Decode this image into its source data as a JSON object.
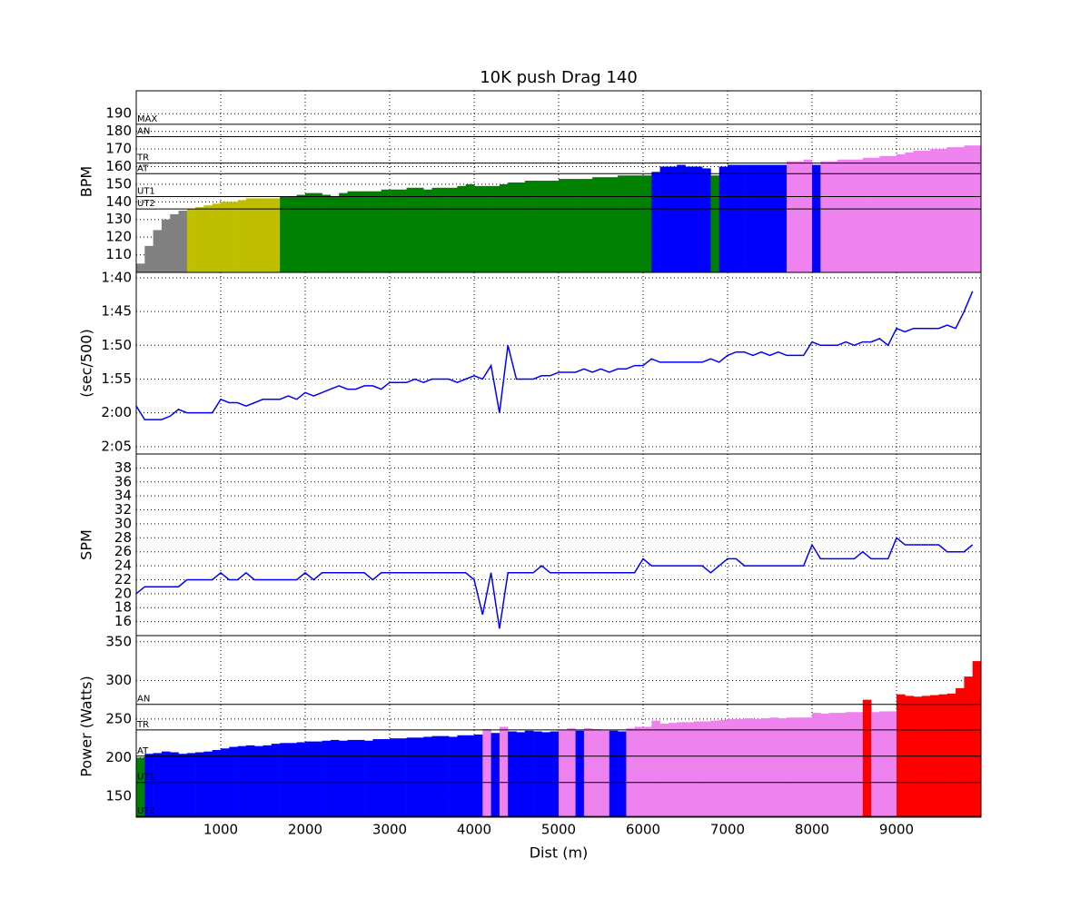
{
  "chart_data": [
    {
      "type": "bar",
      "title": "10K push Drag 140",
      "ylabel": "BPM",
      "x": [
        0,
        100,
        200,
        300,
        400,
        500,
        600,
        700,
        800,
        900,
        1000,
        1100,
        1200,
        1300,
        1400,
        1500,
        1600,
        1700,
        1800,
        1900,
        2000,
        2100,
        2200,
        2300,
        2400,
        2500,
        2600,
        2700,
        2800,
        2900,
        3000,
        3100,
        3200,
        3300,
        3400,
        3500,
        3600,
        3700,
        3800,
        3900,
        4000,
        4100,
        4200,
        4300,
        4400,
        4500,
        4600,
        4700,
        4800,
        4900,
        5000,
        5100,
        5200,
        5300,
        5400,
        5500,
        5600,
        5700,
        5800,
        5900,
        6000,
        6100,
        6200,
        6300,
        6400,
        6500,
        6600,
        6700,
        6800,
        6900,
        7000,
        7100,
        7200,
        7300,
        7400,
        7500,
        7600,
        7700,
        7800,
        7900,
        8000,
        8100,
        8200,
        8300,
        8400,
        8500,
        8600,
        8700,
        8800,
        8900,
        9000,
        9100,
        9200,
        9300,
        9400,
        9500,
        9600,
        9700,
        9800,
        9900
      ],
      "values": [
        105,
        115,
        124,
        130,
        133,
        135,
        136,
        137,
        138,
        139,
        140,
        140,
        141,
        142,
        142,
        142,
        142,
        143,
        143,
        144,
        145,
        145,
        144,
        143,
        145,
        146,
        146,
        146,
        146,
        147,
        147,
        147,
        148,
        148,
        147,
        148,
        148,
        148,
        149,
        150,
        149,
        149,
        149,
        150,
        151,
        151,
        152,
        152,
        152,
        152,
        153,
        153,
        153,
        153,
        154,
        154,
        154,
        155,
        155,
        155,
        155,
        157,
        160,
        160,
        161,
        160,
        160,
        159,
        155,
        160,
        161,
        161,
        161,
        161,
        161,
        161,
        161,
        163,
        163,
        164,
        161,
        163,
        163,
        164,
        164,
        164,
        165,
        165,
        166,
        166,
        167,
        168,
        169,
        169,
        170,
        170,
        171,
        171,
        172,
        172
      ],
      "zones": [
        {
          "name": "UT2",
          "value": 136
        },
        {
          "name": "UT1",
          "value": 143
        },
        {
          "name": "AT",
          "value": 156
        },
        {
          "name": "TR",
          "value": 162
        },
        {
          "name": "AN",
          "value": 177
        },
        {
          "name": "MAX",
          "value": 184
        }
      ],
      "zone_colors": [
        "#808080",
        "#bfbf00",
        "#008000",
        "#0000ff",
        "#ee82ee",
        "#ff0000"
      ],
      "xlim": [
        0,
        10000
      ],
      "xticks": [
        1000,
        2000,
        3000,
        4000,
        5000,
        6000,
        7000,
        8000,
        9000
      ],
      "ylim": [
        100,
        203
      ],
      "yticks": [
        110,
        120,
        130,
        140,
        150,
        160,
        170,
        180,
        190
      ],
      "grid": true
    },
    {
      "type": "line",
      "ylabel": "(sec/500)",
      "color": "#0000ff",
      "x": [
        0,
        100,
        200,
        300,
        400,
        500,
        600,
        700,
        800,
        900,
        1000,
        1100,
        1200,
        1300,
        1400,
        1500,
        1600,
        1700,
        1800,
        1900,
        2000,
        2100,
        2200,
        2300,
        2400,
        2500,
        2600,
        2700,
        2800,
        2900,
        3000,
        3100,
        3200,
        3300,
        3400,
        3500,
        3600,
        3700,
        3800,
        3900,
        4000,
        4100,
        4200,
        4300,
        4400,
        4500,
        4600,
        4700,
        4800,
        4900,
        5000,
        5100,
        5200,
        5300,
        5400,
        5500,
        5600,
        5700,
        5800,
        5900,
        6000,
        6100,
        6200,
        6300,
        6400,
        6500,
        6600,
        6700,
        6800,
        6900,
        7000,
        7100,
        7200,
        7300,
        7400,
        7500,
        7600,
        7700,
        7800,
        7900,
        8000,
        8100,
        8200,
        8300,
        8400,
        8500,
        8600,
        8700,
        8800,
        8900,
        9000,
        9100,
        9200,
        9300,
        9400,
        9500,
        9600,
        9700,
        9800,
        9900
      ],
      "values": [
        119,
        121,
        121,
        121,
        120.5,
        119.5,
        120,
        120,
        120,
        120,
        118,
        118.5,
        118.5,
        119,
        118.5,
        118,
        118,
        118,
        117.5,
        118,
        117,
        117.5,
        117,
        116.5,
        116,
        116.5,
        116.5,
        116,
        116,
        116.5,
        115.5,
        115.5,
        115.5,
        115,
        115.5,
        115,
        115,
        115,
        115.5,
        115,
        114.5,
        115,
        113,
        120,
        110,
        115,
        115,
        115,
        114.5,
        114.5,
        114,
        114,
        114,
        113.5,
        114,
        113.5,
        114,
        113.5,
        113.5,
        113,
        113,
        112,
        112.5,
        112.5,
        112.5,
        112.5,
        112.5,
        112.5,
        112,
        112.5,
        111.5,
        111,
        111,
        111.5,
        111,
        111.5,
        111,
        111.5,
        111.5,
        111.5,
        109.5,
        110,
        110,
        110,
        109.5,
        110,
        109.5,
        109.5,
        109,
        110,
        107.5,
        108,
        107.5,
        107.5,
        107.5,
        107.5,
        107,
        107.5,
        105,
        102
      ],
      "xlim": [
        0,
        10000
      ],
      "xticks": [
        1000,
        2000,
        3000,
        4000,
        5000,
        6000,
        7000,
        8000,
        9000
      ],
      "ylim": [
        126.1,
        99.2
      ],
      "yticks": [
        {
          "value": 100,
          "label": "1:40"
        },
        {
          "value": 105,
          "label": "1:45"
        },
        {
          "value": 110,
          "label": "1:50"
        },
        {
          "value": 115,
          "label": "1:55"
        },
        {
          "value": 120,
          "label": "2:00"
        },
        {
          "value": 125,
          "label": "2:05"
        }
      ],
      "grid": true
    },
    {
      "type": "line",
      "ylabel": "SPM",
      "color": "#0000ff",
      "x": [
        0,
        100,
        200,
        300,
        400,
        500,
        600,
        700,
        800,
        900,
        1000,
        1100,
        1200,
        1300,
        1400,
        1500,
        1600,
        1700,
        1800,
        1900,
        2000,
        2100,
        2200,
        2300,
        2400,
        2500,
        2600,
        2700,
        2800,
        2900,
        3000,
        3100,
        3200,
        3300,
        3400,
        3500,
        3600,
        3700,
        3800,
        3900,
        4000,
        4100,
        4200,
        4300,
        4400,
        4500,
        4600,
        4700,
        4800,
        4900,
        5000,
        5100,
        5200,
        5300,
        5400,
        5500,
        5600,
        5700,
        5800,
        5900,
        6000,
        6100,
        6200,
        6300,
        6400,
        6500,
        6600,
        6700,
        6800,
        6900,
        7000,
        7100,
        7200,
        7300,
        7400,
        7500,
        7600,
        7700,
        7800,
        7900,
        8000,
        8100,
        8200,
        8300,
        8400,
        8500,
        8600,
        8700,
        8800,
        8900,
        9000,
        9100,
        9200,
        9300,
        9400,
        9500,
        9600,
        9700,
        9800,
        9900
      ],
      "values": [
        20,
        21,
        21,
        21,
        21,
        21,
        22,
        22,
        22,
        22,
        23,
        22,
        22,
        23,
        22,
        22,
        22,
        22,
        22,
        22,
        23,
        22,
        23,
        23,
        23,
        23,
        23,
        23,
        22,
        23,
        23,
        23,
        23,
        23,
        23,
        23,
        23,
        23,
        23,
        23,
        22,
        17,
        23,
        15,
        23,
        23,
        23,
        23,
        24,
        23,
        23,
        23,
        23,
        23,
        23,
        23,
        23,
        23,
        23,
        23,
        25,
        24,
        24,
        24,
        24,
        24,
        24,
        24,
        23,
        24,
        25,
        25,
        24,
        24,
        24,
        24,
        24,
        24,
        24,
        24,
        27,
        25,
        25,
        25,
        25,
        25,
        26,
        25,
        25,
        25,
        28,
        27,
        27,
        27,
        27,
        27,
        26,
        26,
        26,
        27
      ],
      "xlim": [
        0,
        10000
      ],
      "xticks": [
        1000,
        2000,
        3000,
        4000,
        5000,
        6000,
        7000,
        8000,
        9000
      ],
      "ylim": [
        14,
        40
      ],
      "yticks": [
        16,
        18,
        20,
        22,
        24,
        26,
        28,
        30,
        32,
        34,
        36,
        38
      ],
      "grid": true
    },
    {
      "type": "bar",
      "ylabel": "Power (Watts)",
      "xlabel": "Dist (m)",
      "x": [
        0,
        100,
        200,
        300,
        400,
        500,
        600,
        700,
        800,
        900,
        1000,
        1100,
        1200,
        1300,
        1400,
        1500,
        1600,
        1700,
        1800,
        1900,
        2000,
        2100,
        2200,
        2300,
        2400,
        2500,
        2600,
        2700,
        2800,
        2900,
        3000,
        3100,
        3200,
        3300,
        3400,
        3500,
        3600,
        3700,
        3800,
        3900,
        4000,
        4100,
        4200,
        4300,
        4400,
        4500,
        4600,
        4700,
        4800,
        4900,
        5000,
        5100,
        5200,
        5300,
        5400,
        5500,
        5600,
        5700,
        5800,
        5900,
        6000,
        6100,
        6200,
        6300,
        6400,
        6500,
        6600,
        6700,
        6800,
        6900,
        7000,
        7100,
        7200,
        7300,
        7400,
        7500,
        7600,
        7700,
        7800,
        7900,
        8000,
        8100,
        8200,
        8300,
        8400,
        8500,
        8600,
        8700,
        8800,
        8900,
        9000,
        9100,
        9200,
        9300,
        9400,
        9500,
        9600,
        9700,
        9800,
        9900
      ],
      "values": [
        200,
        205,
        206,
        208,
        207,
        205,
        206,
        207,
        208,
        210,
        212,
        214,
        215,
        216,
        215,
        216,
        218,
        219,
        219,
        220,
        221,
        221,
        222,
        223,
        222,
        223,
        223,
        222,
        224,
        224,
        225,
        225,
        226,
        226,
        227,
        228,
        228,
        227,
        229,
        229,
        230,
        237,
        232,
        240,
        234,
        233,
        235,
        234,
        233,
        234,
        236,
        238,
        235,
        238,
        237,
        236,
        235,
        234,
        238,
        240,
        240,
        248,
        244,
        245,
        246,
        246,
        247,
        247,
        248,
        249,
        250,
        250,
        251,
        250,
        251,
        252,
        251,
        252,
        252,
        252,
        258,
        257,
        258,
        258,
        259,
        259,
        275,
        259,
        260,
        260,
        282,
        280,
        279,
        280,
        281,
        282,
        283,
        290,
        305,
        325
      ],
      "zones": [
        {
          "name": "UT2",
          "value": 124
        },
        {
          "name": "UT1",
          "value": 168
        },
        {
          "name": "AT",
          "value": 202
        },
        {
          "name": "TR",
          "value": 236
        },
        {
          "name": "AN",
          "value": 269
        }
      ],
      "zone_colors": [
        "#808080",
        "#bfbf00",
        "#008000",
        "#0000ff",
        "#ee82ee",
        "#ff0000"
      ],
      "xlim": [
        0,
        10000
      ],
      "xticks": [
        1000,
        2000,
        3000,
        4000,
        5000,
        6000,
        7000,
        8000,
        9000
      ],
      "ylim": [
        123,
        358
      ],
      "yticks": [
        150,
        200,
        250,
        300,
        350
      ],
      "grid": true
    }
  ]
}
